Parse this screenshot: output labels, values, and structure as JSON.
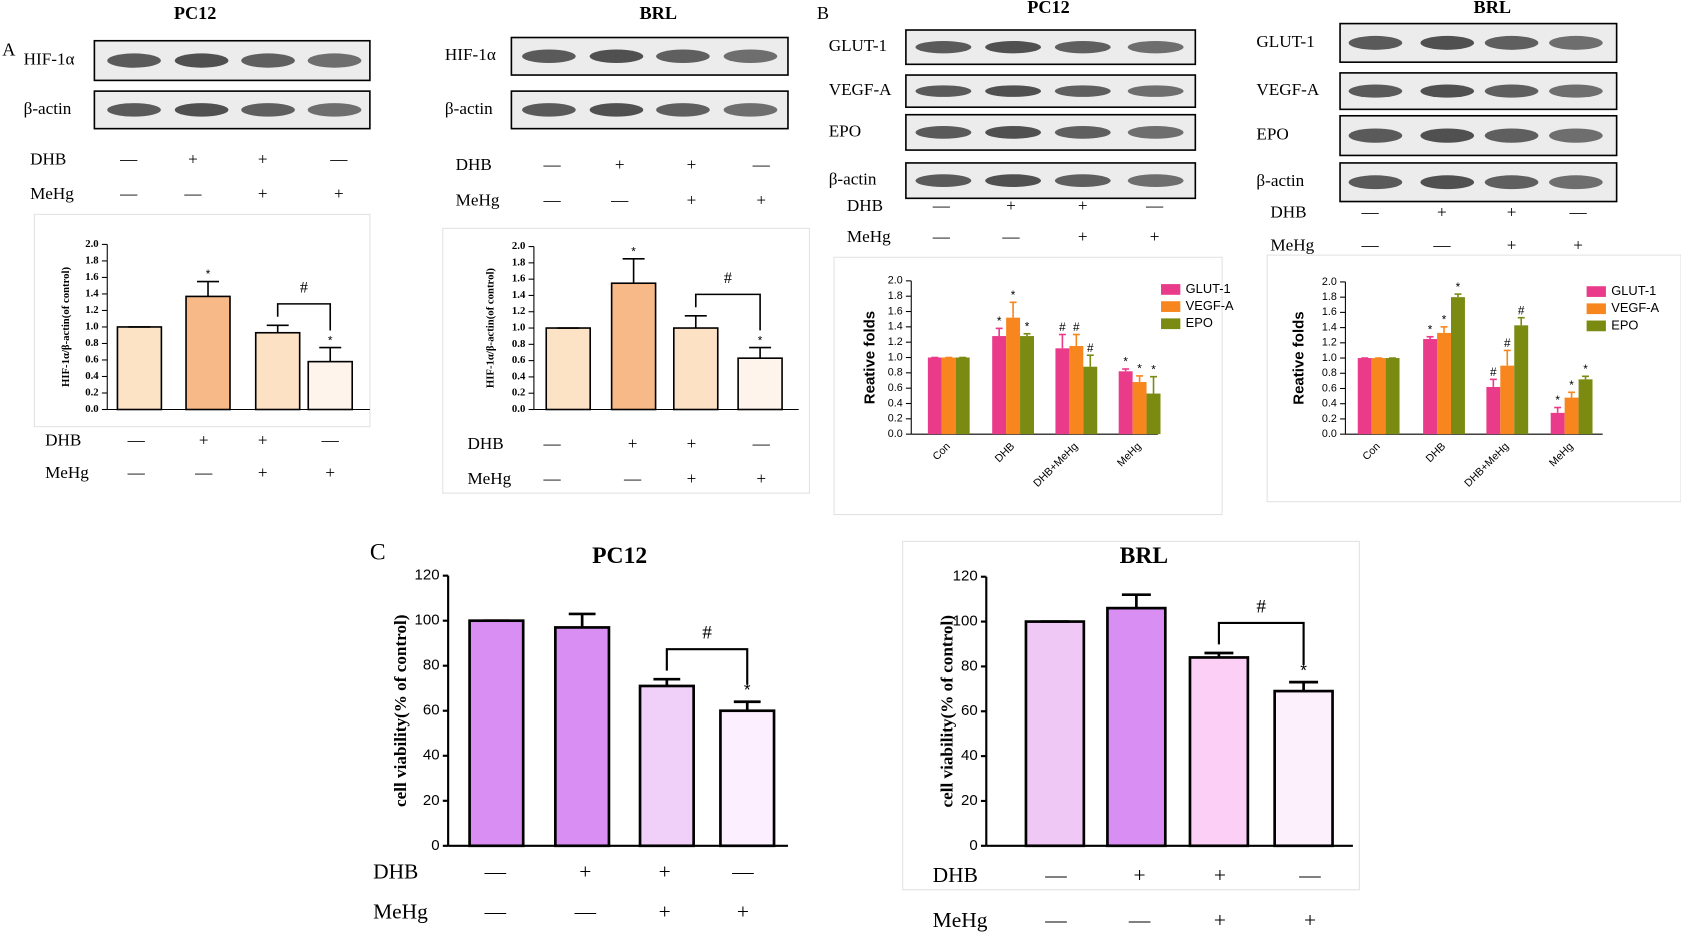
{
  "chart_data": [
    {
      "type": "bar",
      "panel": "A",
      "title": "PC12",
      "blot_labels": [
        "HIF-1α",
        "β-actin"
      ],
      "blot_treatments": [
        {
          "name": "DHB",
          "marks": [
            "—",
            "+",
            "+",
            "—"
          ]
        },
        {
          "name": "MeHg",
          "marks": [
            "—",
            "—",
            "+",
            "+"
          ]
        }
      ],
      "ylabel": "HIF-1α/β-actin(of control)",
      "ylim": [
        0,
        2
      ],
      "yticks": [
        {
          "value": 0,
          "label": "0.0"
        },
        0.2,
        0.4,
        0.6,
        0.8,
        {
          "value": 1,
          "label": "1.0"
        },
        1.2,
        1.4,
        1.6,
        1.8,
        {
          "value": 2,
          "label": "2.0"
        }
      ],
      "series": [
        {
          "values": [
            1.0,
            1.37,
            0.93,
            0.58
          ],
          "errors": [
            0,
            0.18,
            0.09,
            0.17
          ],
          "colors": [
            "#fde3c6",
            "#f8b988",
            "#fde1c4",
            "#fff4ec"
          ],
          "annotations": [
            null,
            "*",
            null,
            "*"
          ]
        }
      ],
      "bracket": {
        "label": "#",
        "between": [
          2,
          3
        ]
      },
      "treatments": [
        {
          "name": "DHB",
          "marks": [
            "—",
            "+",
            "+",
            "—"
          ]
        },
        {
          "name": "MeHg",
          "marks": [
            "—",
            "—",
            "+",
            "+"
          ]
        }
      ]
    },
    {
      "type": "bar",
      "title": "BRL",
      "blot_labels": [
        "HIF-1α",
        "β-actin"
      ],
      "blot_treatments": [
        {
          "name": "DHB",
          "marks": [
            "—",
            "+",
            "+",
            "—"
          ]
        },
        {
          "name": "MeHg",
          "marks": [
            "—",
            "—",
            "+",
            "+"
          ]
        }
      ],
      "ylabel": "HIF-1α/β-actin(of control)",
      "ylim": [
        0,
        2
      ],
      "yticks": [
        {
          "value": 0,
          "label": "0.0"
        },
        0.2,
        0.4,
        0.6,
        0.8,
        {
          "value": 1,
          "label": "1.0"
        },
        1.2,
        1.4,
        1.6,
        1.8,
        {
          "value": 2,
          "label": "2.0"
        }
      ],
      "series": [
        {
          "values": [
            1.0,
            1.55,
            1.0,
            0.63
          ],
          "errors": [
            0,
            0.3,
            0.15,
            0.13
          ],
          "colors": [
            "#fde3c6",
            "#f8b988",
            "#fde1c4",
            "#fff4ec"
          ],
          "annotations": [
            null,
            "*",
            null,
            "*"
          ]
        }
      ],
      "bracket": {
        "label": "#",
        "between": [
          2,
          3
        ]
      },
      "treatments": [
        {
          "name": "DHB",
          "marks": [
            "—",
            "+",
            "+",
            "—"
          ]
        },
        {
          "name": "MeHg",
          "marks": [
            "—",
            "—",
            "+",
            "+"
          ]
        }
      ]
    },
    {
      "type": "bar",
      "panel": "B",
      "title": "PC12",
      "blot_labels": [
        "GLUT-1",
        "VEGF-A",
        "EPO",
        "β-actin"
      ],
      "blot_treatments": [
        {
          "name": "DHB",
          "marks": [
            "—",
            "+",
            "+",
            "—"
          ]
        },
        {
          "name": "MeHg",
          "marks": [
            "—",
            "—",
            "+",
            "+"
          ]
        }
      ],
      "ylabel": "Reative folds",
      "ylim": [
        0,
        2
      ],
      "yticks": [
        {
          "value": 0,
          "label": "0.0"
        },
        0.2,
        0.4,
        0.6,
        0.8,
        {
          "value": 1,
          "label": "1.0"
        },
        1.2,
        1.4,
        1.6,
        1.8,
        {
          "value": 2,
          "label": "2.0"
        }
      ],
      "categories": [
        "Con",
        "DHB",
        "DHB+MeHg",
        "MeHg"
      ],
      "series": [
        {
          "name": "GLUT-1",
          "color": "#ea3b8a",
          "values": [
            1.0,
            1.28,
            1.12,
            0.82
          ],
          "errors": [
            0,
            0.1,
            0.18,
            0.03
          ],
          "annotations": [
            null,
            "*",
            "#",
            "*"
          ]
        },
        {
          "name": "VEGF-A",
          "color": "#f7861e",
          "values": [
            1.0,
            1.52,
            1.15,
            0.68
          ],
          "errors": [
            0,
            0.2,
            0.15,
            0.08
          ],
          "annotations": [
            null,
            "*",
            "#",
            "*"
          ]
        },
        {
          "name": "EPO",
          "color": "#7b8b12",
          "values": [
            1.0,
            1.28,
            0.88,
            0.53
          ],
          "errors": [
            0,
            0.03,
            0.15,
            0.22
          ],
          "annotations": [
            null,
            "*",
            "#",
            "*"
          ]
        }
      ]
    },
    {
      "type": "bar",
      "title": "BRL",
      "blot_labels": [
        "GLUT-1",
        "VEGF-A",
        "EPO",
        "β-actin"
      ],
      "blot_treatments": [
        {
          "name": "DHB",
          "marks": [
            "—",
            "+",
            "+",
            "—"
          ]
        },
        {
          "name": "MeHg",
          "marks": [
            "—",
            "—",
            "+",
            "+"
          ]
        }
      ],
      "ylabel": "Reative folds",
      "ylim": [
        0,
        2
      ],
      "yticks": [
        {
          "value": 0,
          "label": "0.0"
        },
        0.2,
        0.4,
        0.6,
        0.8,
        {
          "value": 1,
          "label": "1.0"
        },
        1.2,
        1.4,
        1.6,
        1.8,
        {
          "value": 2,
          "label": "2.0"
        }
      ],
      "categories": [
        "Con",
        "DHB",
        "DHB+MeHg",
        "MeHg"
      ],
      "series": [
        {
          "name": "GLUT-1",
          "color": "#ea3b8a",
          "values": [
            1.0,
            1.25,
            0.62,
            0.28
          ],
          "errors": [
            0,
            0.03,
            0.1,
            0.07
          ],
          "annotations": [
            null,
            "*",
            "#",
            "*"
          ]
        },
        {
          "name": "VEGF-A",
          "color": "#f7861e",
          "values": [
            1.0,
            1.33,
            0.9,
            0.48
          ],
          "errors": [
            0,
            0.08,
            0.2,
            0.07
          ],
          "annotations": [
            null,
            "*",
            "#",
            "*"
          ]
        },
        {
          "name": "EPO",
          "color": "#7b8b12",
          "values": [
            1.0,
            1.8,
            1.43,
            0.72
          ],
          "errors": [
            0,
            0.04,
            0.1,
            0.04
          ],
          "annotations": [
            null,
            "*",
            "#",
            "*"
          ]
        }
      ]
    },
    {
      "type": "bar",
      "panel": "C",
      "title": "PC12",
      "ylabel": "cell viability(% of control)",
      "ylim": [
        0,
        120
      ],
      "yticks": [
        0,
        20,
        40,
        60,
        80,
        100,
        120
      ],
      "series": [
        {
          "values": [
            100,
            97,
            71,
            60
          ],
          "errors": [
            0,
            6,
            3,
            4
          ],
          "colors": [
            "#d98ef3",
            "#d98ef3",
            "#f0d0f8",
            "#fcefff"
          ],
          "annotations": [
            null,
            null,
            null,
            "*"
          ]
        }
      ],
      "bracket": {
        "label": "#",
        "between": [
          2,
          3
        ]
      },
      "treatments": [
        {
          "name": "DHB",
          "marks": [
            "—",
            "+",
            "+",
            "—"
          ]
        },
        {
          "name": "MeHg",
          "marks": [
            "—",
            "—",
            "+",
            "+"
          ]
        }
      ]
    },
    {
      "type": "bar",
      "title": "BRL",
      "ylabel": "cell viability(% of control)",
      "ylim": [
        0,
        120
      ],
      "yticks": [
        0,
        20,
        40,
        60,
        80,
        100,
        120
      ],
      "series": [
        {
          "values": [
            100,
            106,
            84,
            69
          ],
          "errors": [
            0,
            6,
            2,
            4
          ],
          "colors": [
            "#f0c8f5",
            "#d98ef3",
            "#fcd0f6",
            "#fdf0fd"
          ],
          "annotations": [
            null,
            null,
            null,
            "*"
          ]
        }
      ],
      "bracket": {
        "label": "#",
        "between": [
          2,
          3
        ]
      },
      "treatments": [
        {
          "name": "DHB",
          "marks": [
            "—",
            "+",
            "+",
            "—"
          ]
        },
        {
          "name": "MeHg",
          "marks": [
            "—",
            "—",
            "+",
            "+"
          ]
        }
      ]
    }
  ]
}
